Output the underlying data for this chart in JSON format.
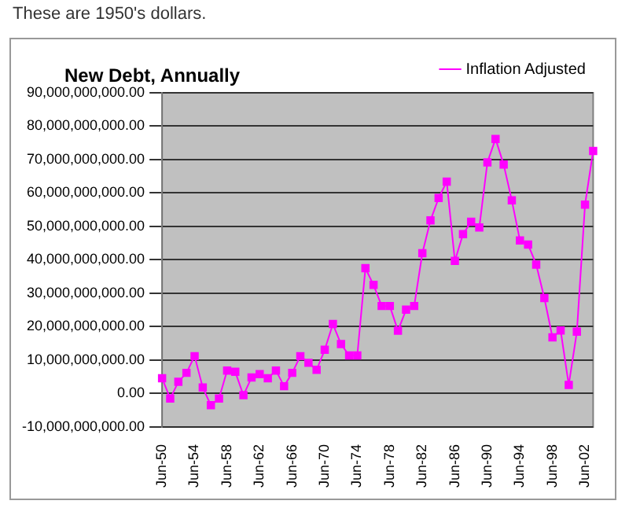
{
  "chart_data": {
    "type": "line",
    "title": "New Debt, Annually",
    "subtitle": "These are 1950's dollars.",
    "categories": [
      "Jun-50",
      null,
      null,
      null,
      "Jun-54",
      null,
      null,
      null,
      "Jun-58",
      null,
      null,
      null,
      "Jun-62",
      null,
      null,
      null,
      "Jun-66",
      null,
      null,
      null,
      "Jun-70",
      null,
      null,
      null,
      "Jun-74",
      null,
      null,
      null,
      "Jun-78",
      null,
      null,
      null,
      "Jun-82",
      null,
      null,
      null,
      "Jun-86",
      null,
      null,
      null,
      "Jun-90",
      null,
      null,
      null,
      "Jun-94",
      null,
      null,
      null,
      "Jun-98",
      null,
      null,
      null,
      "Jun-02",
      null
    ],
    "series": [
      {
        "name": "Inflation Adjusted",
        "color": "#ff00ff",
        "values": [
          4600000000,
          -1500000000,
          3500000000,
          6200000000,
          11200000000,
          1800000000,
          -3500000000,
          -1500000000,
          6900000000,
          6500000000,
          -500000000,
          4800000000,
          5800000000,
          4600000000,
          6900000000,
          2200000000,
          6200000000,
          11200000000,
          9200000000,
          7100000000,
          13100000000,
          20800000000,
          14800000000,
          11400000000,
          11400000000,
          37500000000,
          32500000000,
          26200000000,
          26200000000,
          18800000000,
          25100000000,
          26200000000,
          42000000000,
          51800000000,
          58500000000,
          63400000000,
          39700000000,
          47700000000,
          51400000000,
          49700000000,
          69200000000,
          76200000000,
          68500000000,
          57800000000,
          45800000000,
          44600000000,
          38600000000,
          28600000000,
          16800000000,
          18900000000,
          2600000000,
          18500000000,
          56500000000,
          72600000000
        ]
      }
    ],
    "ylim": [
      -10000000000,
      90000000000
    ],
    "yticks": [
      {
        "value": -10000000000,
        "label": "-10,000,000,000.00"
      },
      {
        "value": 0,
        "label": "0.00"
      },
      {
        "value": 10000000000,
        "label": "10,000,000,000.00"
      },
      {
        "value": 20000000000,
        "label": "20,000,000,000.00"
      },
      {
        "value": 30000000000,
        "label": "30,000,000,000.00"
      },
      {
        "value": 40000000000,
        "label": "40,000,000,000.00"
      },
      {
        "value": 50000000000,
        "label": "50,000,000,000.00"
      },
      {
        "value": 60000000000,
        "label": "60,000,000,000.00"
      },
      {
        "value": 70000000000,
        "label": "70,000,000,000.00"
      },
      {
        "value": 80000000000,
        "label": "80,000,000,000.00"
      },
      {
        "value": 90000000000,
        "label": "90,000,000,000.00"
      }
    ],
    "grid": "y",
    "legend": "top right",
    "marker": "square",
    "line_style": "solid"
  }
}
